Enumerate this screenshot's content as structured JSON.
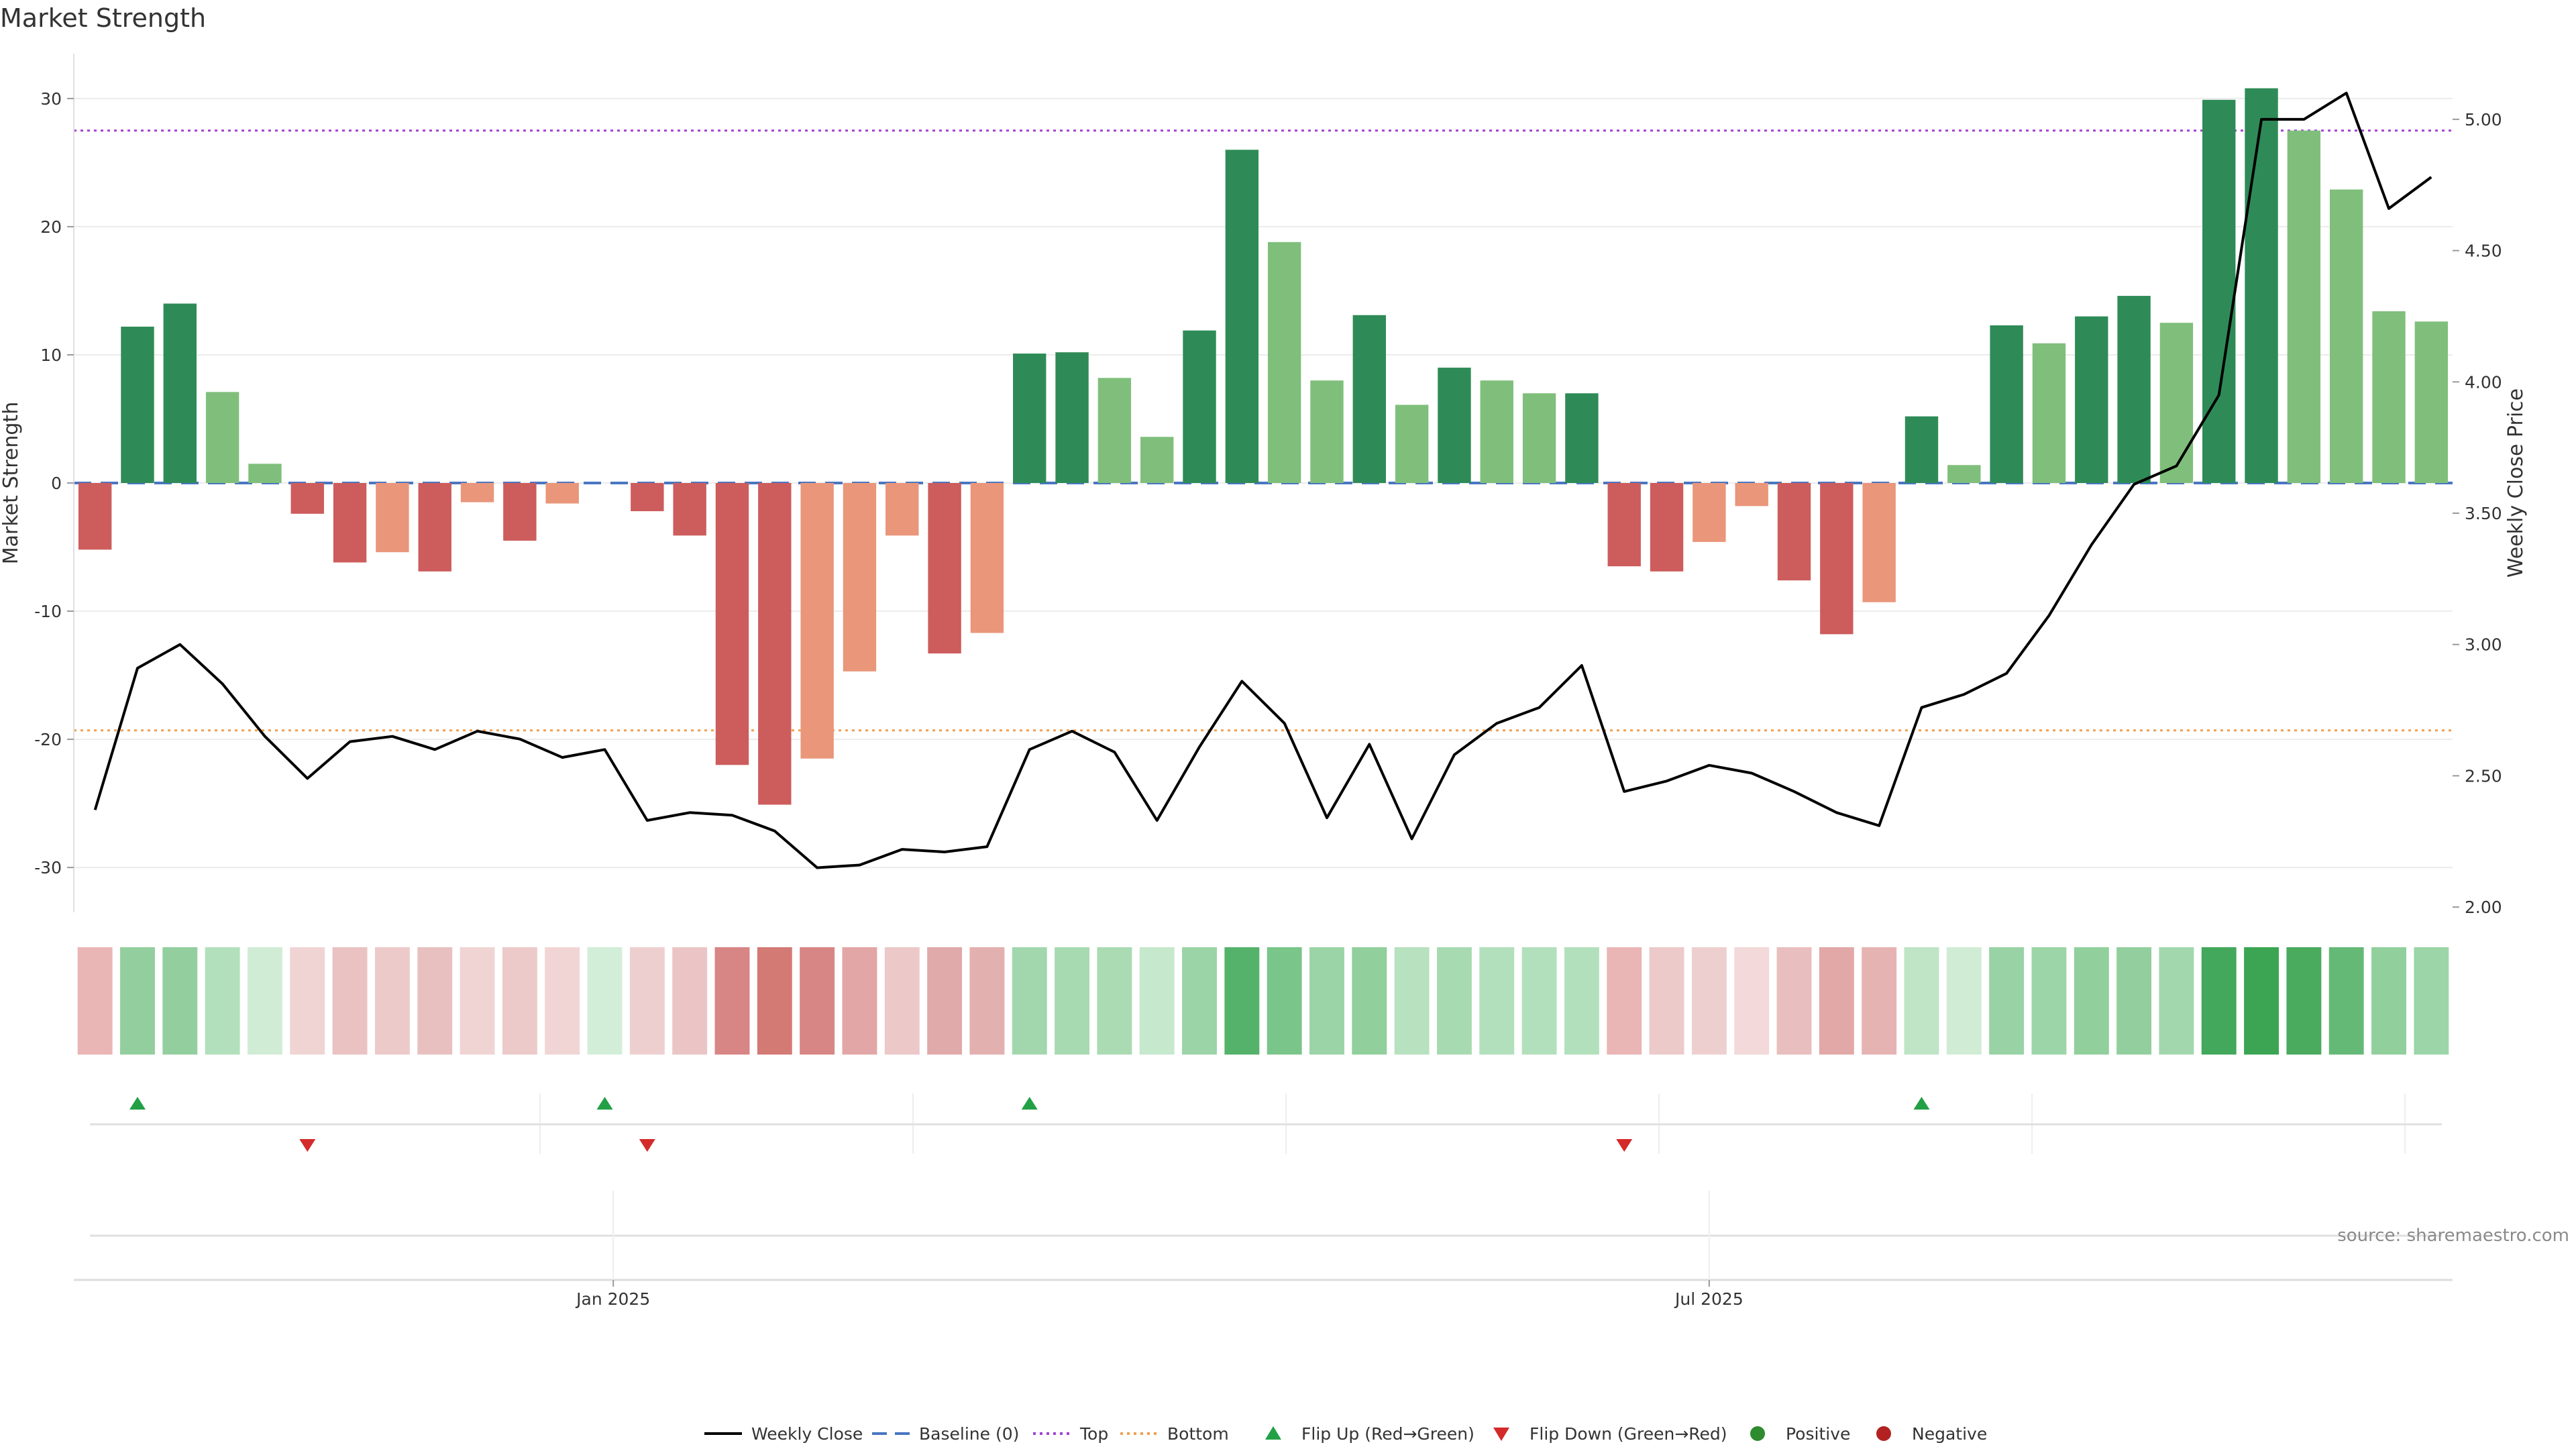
{
  "chart_data": {
    "type": "bar",
    "title": "Market Strength",
    "ylabel": "Market Strength",
    "y2label": "Weekly Close Price",
    "ylim": [
      -33.5,
      33.5
    ],
    "y2lim": [
      1.98,
      5.25
    ],
    "yticks": [
      -30,
      -20,
      -10,
      0,
      10,
      20,
      30
    ],
    "y2ticks": [
      "2.00",
      "2.50",
      "3.00",
      "3.50",
      "4.00",
      "4.50",
      "5.00"
    ],
    "top_line": 27.5,
    "bottom_line": -19.3,
    "baseline": 0,
    "date_labels": [
      {
        "label": "Jan 2025",
        "index": 12.7
      },
      {
        "label": "Jul 2025",
        "index": 38.5
      }
    ],
    "strength": [
      -5.2,
      12.2,
      14.0,
      7.1,
      1.5,
      -2.4,
      -6.2,
      -5.4,
      -6.9,
      -1.5,
      -4.5,
      -1.6,
      0,
      -2.2,
      -4.1,
      -22.0,
      -25.1,
      -21.5,
      -14.7,
      -4.1,
      -13.3,
      -11.7,
      10.1,
      10.2,
      8.2,
      3.6,
      11.9,
      26.0,
      18.8,
      8.0,
      13.1,
      6.1,
      9.0,
      8.0,
      7.0,
      7.0,
      -6.5,
      -6.9,
      -4.6,
      -1.8,
      -7.6,
      -11.8,
      -9.3,
      5.2,
      1.4,
      12.3,
      10.9,
      13.0,
      14.6,
      12.5,
      29.9,
      30.8,
      27.5,
      22.9,
      13.4,
      12.6
    ],
    "colors": [
      "red",
      "dgreen",
      "dgreen",
      "lgreen",
      "lgreen",
      "red",
      "red",
      "salmon",
      "red",
      "salmon",
      "red",
      "salmon",
      "none",
      "red",
      "red",
      "red",
      "red",
      "salmon",
      "salmon",
      "salmon",
      "red",
      "salmon",
      "dgreen",
      "dgreen",
      "lgreen",
      "lgreen",
      "dgreen",
      "dgreen",
      "lgreen",
      "lgreen",
      "dgreen",
      "lgreen",
      "dgreen",
      "lgreen",
      "lgreen",
      "dgreen",
      "red",
      "red",
      "salmon",
      "salmon",
      "red",
      "red",
      "salmon",
      "dgreen",
      "lgreen",
      "dgreen",
      "lgreen",
      "dgreen",
      "dgreen",
      "lgreen",
      "dgreen",
      "dgreen",
      "lgreen",
      "lgreen",
      "lgreen",
      "lgreen"
    ],
    "close_price": [
      2.37,
      2.91,
      3.0,
      2.85,
      2.65,
      2.49,
      2.63,
      2.65,
      2.6,
      2.67,
      2.64,
      2.57,
      2.6,
      2.33,
      2.36,
      2.35,
      2.29,
      2.15,
      2.16,
      2.22,
      2.21,
      2.23,
      2.6,
      2.67,
      2.59,
      2.33,
      2.61,
      2.86,
      2.7,
      2.34,
      2.62,
      2.26,
      2.58,
      2.7,
      2.76,
      2.92,
      2.44,
      2.48,
      2.54,
      2.51,
      2.44,
      2.36,
      2.31,
      2.76,
      2.81,
      2.89,
      3.11,
      3.38,
      3.61,
      3.68,
      3.95,
      5.0,
      5.0,
      5.1,
      4.66,
      4.78
    ],
    "heatmap_colors": [
      "#eab5b5",
      "#93cf9e",
      "#93cf9e",
      "#b3e0bc",
      "#d1ecd5",
      "#f0d4d4",
      "#eac2c2",
      "#edcaca",
      "#e8c0c0",
      "#f0d4d4",
      "#eccaca",
      "#f1d5d5",
      "#d3eed8",
      "#eecfcf",
      "#ebc5c5",
      "#d88585",
      "#d47a75",
      "#d88585",
      "#e3a6a6",
      "#ecc8c8",
      "#e0aaaa",
      "#e3b0b0",
      "#a2d7ad",
      "#a8dab1",
      "#aadbb2",
      "#c6e8cc",
      "#9bd4a6",
      "#55b26a",
      "#7ac58a",
      "#9bd4a6",
      "#91cf9c",
      "#b7e1bf",
      "#a8dab1",
      "#b3e0bc",
      "#b3e0bc",
      "#b3e0bc",
      "#eab5b5",
      "#eccaca",
      "#eecfcf",
      "#f3d9d9",
      "#e9bebe",
      "#e2a8a8",
      "#e6b3b3",
      "#bfe4c6",
      "#d1ecd5",
      "#99d3a5",
      "#9cd5a7",
      "#91cf9c",
      "#93cf9e",
      "#a2d7ad",
      "#43a85b",
      "#3ba553",
      "#4aab5f",
      "#65b977",
      "#91cf9c",
      "#9cd5a7"
    ],
    "flip_up": [
      1,
      12,
      22,
      43
    ],
    "flip_down": [
      5,
      13,
      36
    ],
    "legend": [
      "Weekly Close",
      "Baseline (0)",
      "Top",
      "Bottom",
      "Flip Up (Red→Green)",
      "Flip Down (Green→Red)",
      "Positive",
      "Negative"
    ],
    "source": "source: sharemaestro.com"
  },
  "palette": {
    "dgreen": "#2e8b57",
    "lgreen": "#7fbf7b",
    "red": "#cd5c5c",
    "salmon": "#e9967a",
    "price_line": "#000000",
    "baseline": "#4a76c2",
    "top": "#a442d6",
    "bottom": "#f0a050",
    "flip_up": "#22a045",
    "flip_down": "#d42a2a",
    "positive": "#2e8b2e",
    "negative": "#b22222"
  }
}
